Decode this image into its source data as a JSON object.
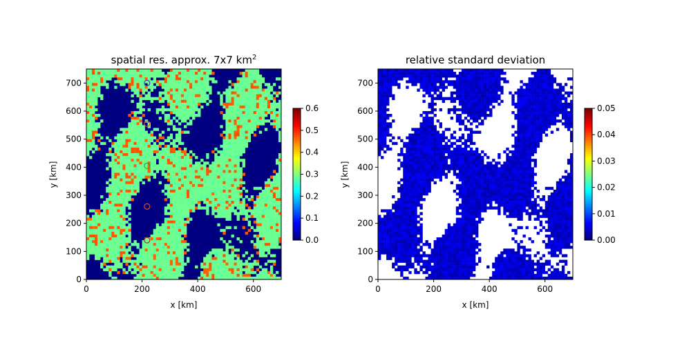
{
  "chart_data": [
    {
      "type": "heatmap",
      "title": "spatial res. approx. 7x7 km",
      "title_superscript": "2",
      "xlabel": "x [km]",
      "ylabel": "y [km]",
      "xlim": [
        0,
        700
      ],
      "ylim": [
        0,
        750
      ],
      "xticks": [
        "0",
        "200",
        "400",
        "600"
      ],
      "yticks": [
        "0",
        "100",
        "200",
        "300",
        "400",
        "500",
        "600",
        "700"
      ],
      "colorbar": {
        "colormap": "jet",
        "range": [
          0.0,
          0.6
        ],
        "ticks": [
          "0.0",
          "0.1",
          "0.2",
          "0.3",
          "0.4",
          "0.5",
          "0.6"
        ]
      },
      "markers": [
        {
          "x": 218,
          "y": 700,
          "color": "#3a3ab8"
        },
        {
          "x": 218,
          "y": 555,
          "color": "#e0501a"
        },
        {
          "x": 218,
          "y": 405,
          "color": "#1aa84a"
        },
        {
          "x": 218,
          "y": 260,
          "color": "#e0501a"
        },
        {
          "x": 218,
          "y": 140,
          "color": "#d02020"
        }
      ],
      "background_value": 0.0,
      "typical_value": 0.29
    },
    {
      "type": "heatmap",
      "title": "relative standard deviation",
      "xlabel": "x [km]",
      "ylabel": "y [km]",
      "xlim": [
        0,
        700
      ],
      "ylim": [
        0,
        750
      ],
      "xticks": [
        "0",
        "200",
        "400",
        "600"
      ],
      "yticks": [
        "0",
        "100",
        "200",
        "300",
        "400",
        "500",
        "600",
        "700"
      ],
      "colorbar": {
        "colormap": "jet",
        "range": [
          0.0,
          0.05
        ],
        "ticks": [
          "0.00",
          "0.01",
          "0.02",
          "0.03",
          "0.04",
          "0.05"
        ]
      },
      "masked_color": "#ffffff",
      "typical_value": 0.002
    }
  ]
}
